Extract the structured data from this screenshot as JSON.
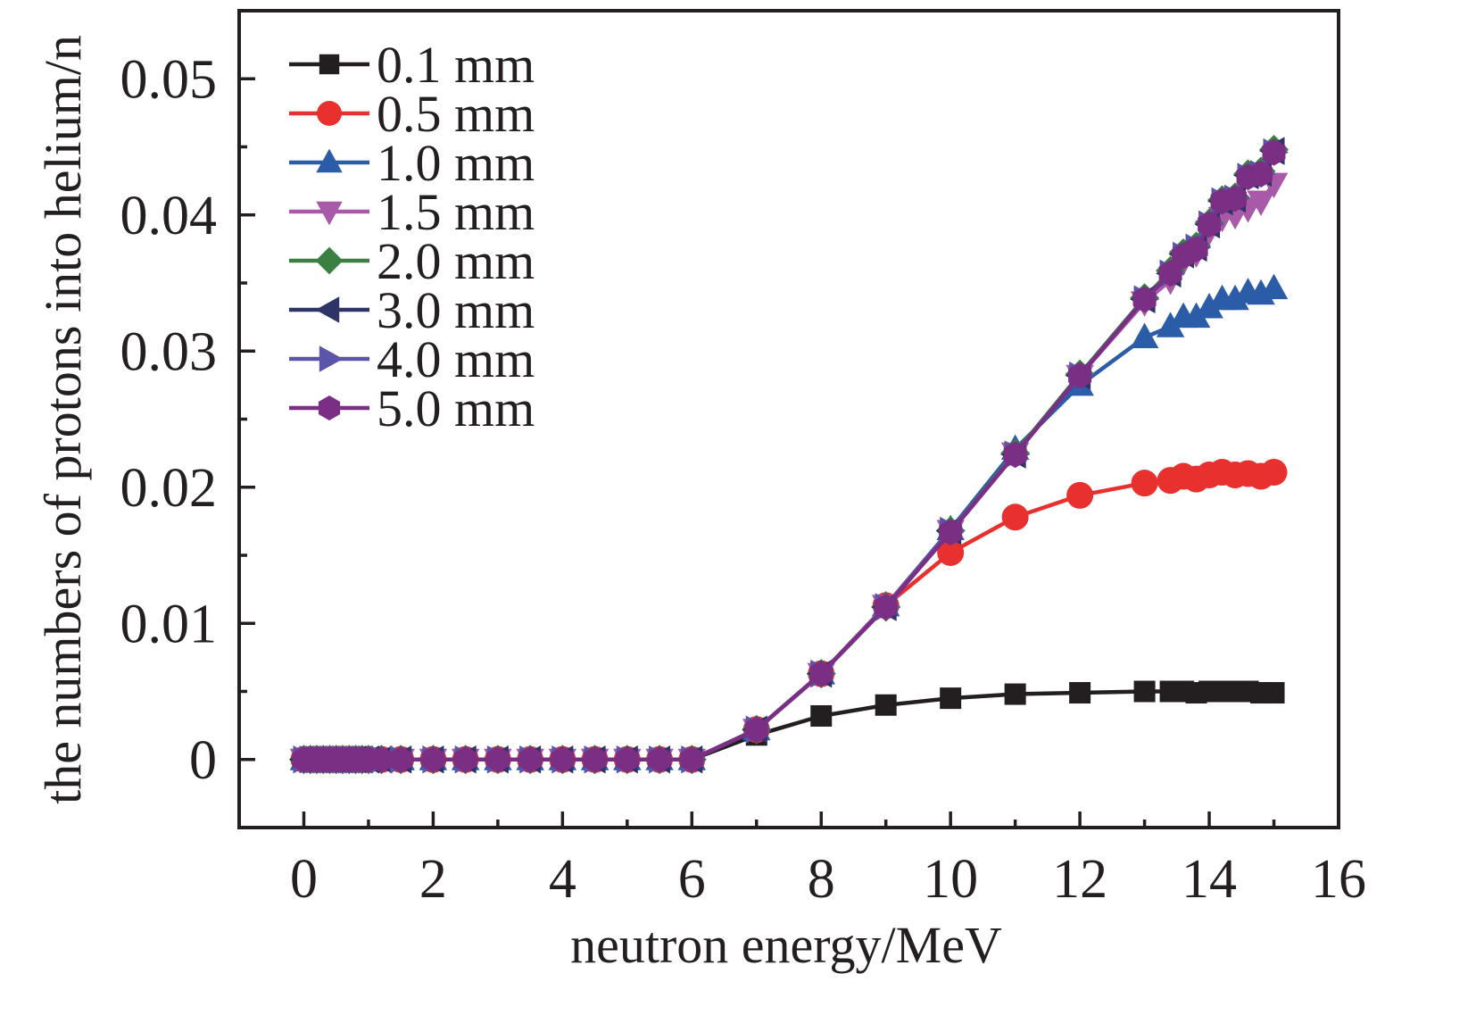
{
  "chart_data": {
    "type": "line",
    "title": "",
    "xlabel": "neutron energy/MeV",
    "ylabel": "the numbers of protons into helium/n",
    "xlim": [
      -1,
      16
    ],
    "ylim": [
      -0.005,
      0.055
    ],
    "xticks": [
      0,
      2,
      4,
      6,
      8,
      10,
      12,
      14,
      16
    ],
    "xtick_labels": [
      "0",
      "2",
      "4",
      "6",
      "8",
      "10",
      "12",
      "14",
      "16"
    ],
    "yticks": [
      0,
      0.01,
      0.02,
      0.03,
      0.04,
      0.05
    ],
    "ytick_labels": [
      "0",
      "0.01",
      "0.02",
      "0.03",
      "0.04",
      "0.05"
    ],
    "grid": false,
    "legend_position": "top-left",
    "x": [
      0,
      0.1,
      0.2,
      0.3,
      0.4,
      0.5,
      0.6,
      0.7,
      0.8,
      0.9,
      1.0,
      1.2,
      1.5,
      2,
      2.5,
      3,
      3.5,
      4,
      4.5,
      5,
      5.5,
      6,
      7,
      8,
      9,
      10,
      11,
      12,
      13,
      13.4,
      13.6,
      13.8,
      14,
      14.2,
      14.4,
      14.6,
      14.8,
      15
    ],
    "series": [
      {
        "name": "0.1 mm",
        "color": "#231f20",
        "marker": "square",
        "values": [
          0,
          0,
          0,
          0,
          0,
          0,
          0,
          0,
          0,
          0,
          0,
          0,
          0,
          0,
          0,
          0,
          0,
          0,
          0,
          0,
          0,
          0,
          0.0018,
          0.0032,
          0.004,
          0.0045,
          0.0048,
          0.0049,
          0.005,
          0.005,
          0.005,
          0.0049,
          0.005,
          0.005,
          0.005,
          0.005,
          0.0049,
          0.0049
        ]
      },
      {
        "name": "0.5 mm",
        "color": "#e8312f",
        "marker": "circle",
        "values": [
          0,
          0,
          0,
          0,
          0,
          0,
          0,
          0,
          0,
          0,
          0,
          0,
          0,
          0,
          0,
          0,
          0,
          0,
          0,
          0,
          0,
          0,
          0.0022,
          0.0063,
          0.0113,
          0.0152,
          0.0178,
          0.0194,
          0.0203,
          0.0205,
          0.0208,
          0.0206,
          0.0209,
          0.0211,
          0.0209,
          0.021,
          0.0208,
          0.0211
        ]
      },
      {
        "name": "1.0 mm",
        "color": "#2b5ca8",
        "marker": "triangle-up",
        "values": [
          0,
          0,
          0,
          0,
          0,
          0,
          0,
          0,
          0,
          0,
          0,
          0,
          0,
          0,
          0,
          0,
          0,
          0,
          0,
          0,
          0,
          0,
          0.0022,
          0.0063,
          0.0113,
          0.0169,
          0.0228,
          0.0275,
          0.031,
          0.0318,
          0.0325,
          0.0325,
          0.0332,
          0.0338,
          0.0338,
          0.0343,
          0.0342,
          0.0346
        ]
      },
      {
        "name": "1.5 mm",
        "color": "#a85aa8",
        "marker": "triangle-down",
        "values": [
          0,
          0,
          0,
          0,
          0,
          0,
          0,
          0,
          0,
          0,
          0,
          0,
          0,
          0,
          0,
          0,
          0,
          0,
          0,
          0,
          0,
          0,
          0.0022,
          0.0063,
          0.0113,
          0.0168,
          0.0225,
          0.0282,
          0.0336,
          0.0352,
          0.0366,
          0.0372,
          0.0388,
          0.0398,
          0.04,
          0.0405,
          0.041,
          0.0423
        ]
      },
      {
        "name": "2.0 mm",
        "color": "#3a8043",
        "marker": "diamond",
        "values": [
          0,
          0,
          0,
          0,
          0,
          0,
          0,
          0,
          0,
          0,
          0,
          0,
          0,
          0,
          0,
          0,
          0,
          0,
          0,
          0,
          0,
          0,
          0.0022,
          0.0063,
          0.0112,
          0.0168,
          0.0225,
          0.0283,
          0.0339,
          0.0359,
          0.0372,
          0.0377,
          0.0394,
          0.0411,
          0.0413,
          0.043,
          0.0432,
          0.0448
        ]
      },
      {
        "name": "3.0 mm",
        "color": "#2e3468",
        "marker": "triangle-left",
        "values": [
          0,
          0,
          0,
          0,
          0,
          0,
          0,
          0,
          0,
          0,
          0,
          0,
          0,
          0,
          0,
          0,
          0,
          0,
          0,
          0,
          0,
          0,
          0.0022,
          0.0063,
          0.0112,
          0.0168,
          0.0224,
          0.0282,
          0.0338,
          0.0357,
          0.0371,
          0.0376,
          0.0393,
          0.041,
          0.0412,
          0.0429,
          0.0431,
          0.0447
        ]
      },
      {
        "name": "4.0 mm",
        "color": "#5a55a8",
        "marker": "triangle-right",
        "values": [
          0,
          0,
          0,
          0,
          0,
          0,
          0,
          0,
          0,
          0,
          0,
          0,
          0,
          0,
          0,
          0,
          0,
          0,
          0,
          0,
          0,
          0,
          0.0022,
          0.0063,
          0.0112,
          0.0168,
          0.0224,
          0.0282,
          0.0338,
          0.0357,
          0.037,
          0.0376,
          0.0393,
          0.041,
          0.0412,
          0.0428,
          0.043,
          0.0446
        ]
      },
      {
        "name": "5.0 mm",
        "color": "#7b2f84",
        "marker": "hexagon",
        "values": [
          0,
          0,
          0,
          0,
          0,
          0,
          0,
          0,
          0,
          0,
          0,
          0,
          0,
          0,
          0,
          0,
          0,
          0,
          0,
          0,
          0,
          0,
          0.0022,
          0.0063,
          0.0112,
          0.0167,
          0.0224,
          0.0282,
          0.0338,
          0.0357,
          0.037,
          0.0375,
          0.0393,
          0.041,
          0.0412,
          0.0428,
          0.043,
          0.0446
        ]
      }
    ]
  }
}
